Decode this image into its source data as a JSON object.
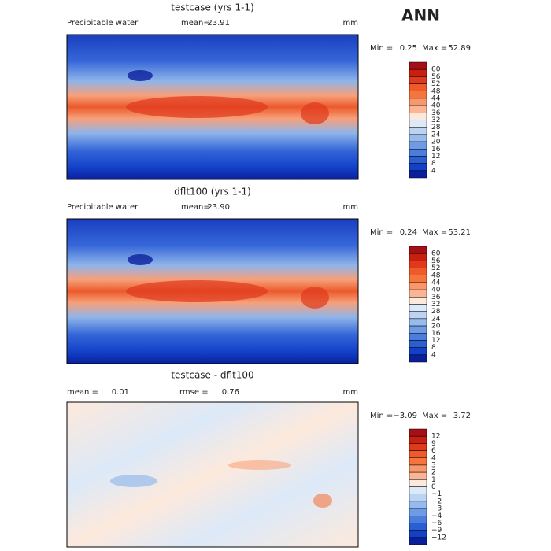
{
  "title": "ANN",
  "panels": [
    {
      "title": "testcase (yrs 1-1)",
      "variable": "Precipitable water",
      "mean_label": "mean=",
      "mean": "23.91",
      "units": "mm",
      "min_label": "Min =",
      "min": "0.25",
      "max_label": "Max =",
      "max": "52.89",
      "colorbar": {
        "labels": [
          "60",
          "56",
          "52",
          "48",
          "44",
          "40",
          "36",
          "32",
          "28",
          "24",
          "20",
          "16",
          "12",
          "8",
          "4"
        ],
        "colors": [
          "#a50f15",
          "#c8200e",
          "#e0391c",
          "#ef5a2a",
          "#f5763d",
          "#f9966a",
          "#fcb594",
          "#fde9dc",
          "#dce9f8",
          "#bcd4f2",
          "#96bbec",
          "#6e9be3",
          "#4a7ddc",
          "#2a5fd4",
          "#1240c8",
          "#0a1f9c"
        ]
      }
    },
    {
      "title": "dflt100 (yrs 1-1)",
      "variable": "Precipitable water",
      "mean_label": "mean=",
      "mean": "23.90",
      "units": "mm",
      "min_label": "Min =",
      "min": "0.24",
      "max_label": "Max =",
      "max": "53.21",
      "colorbar": {
        "labels": [
          "60",
          "56",
          "52",
          "48",
          "44",
          "40",
          "36",
          "32",
          "28",
          "24",
          "20",
          "16",
          "12",
          "8",
          "4"
        ],
        "colors": [
          "#a50f15",
          "#c8200e",
          "#e0391c",
          "#ef5a2a",
          "#f5763d",
          "#f9966a",
          "#fcb594",
          "#fde9dc",
          "#dce9f8",
          "#bcd4f2",
          "#96bbec",
          "#6e9be3",
          "#4a7ddc",
          "#2a5fd4",
          "#1240c8",
          "#0a1f9c"
        ]
      }
    },
    {
      "title": "testcase - dflt100",
      "mean_label": "mean =",
      "mean": "0.01",
      "rmse_label": "rmse =",
      "rmse": "0.76",
      "units": "mm",
      "min_label": "Min =",
      "min": "−3.09",
      "max_label": "Max =",
      "max": "3.72",
      "colorbar": {
        "labels": [
          "12",
          "9",
          "6",
          "4",
          "3",
          "2",
          "1",
          "0",
          "−1",
          "−2",
          "−3",
          "−4",
          "−6",
          "−9",
          "−12"
        ],
        "colors": [
          "#a50f15",
          "#c8200e",
          "#e0391c",
          "#ef5a2a",
          "#f5763d",
          "#f9966a",
          "#fcb594",
          "#fde9dc",
          "#dce9f8",
          "#bcd4f2",
          "#96bbec",
          "#6e9be3",
          "#4a7ddc",
          "#2a5fd4",
          "#1240c8",
          "#0a1f9c"
        ]
      }
    }
  ]
}
